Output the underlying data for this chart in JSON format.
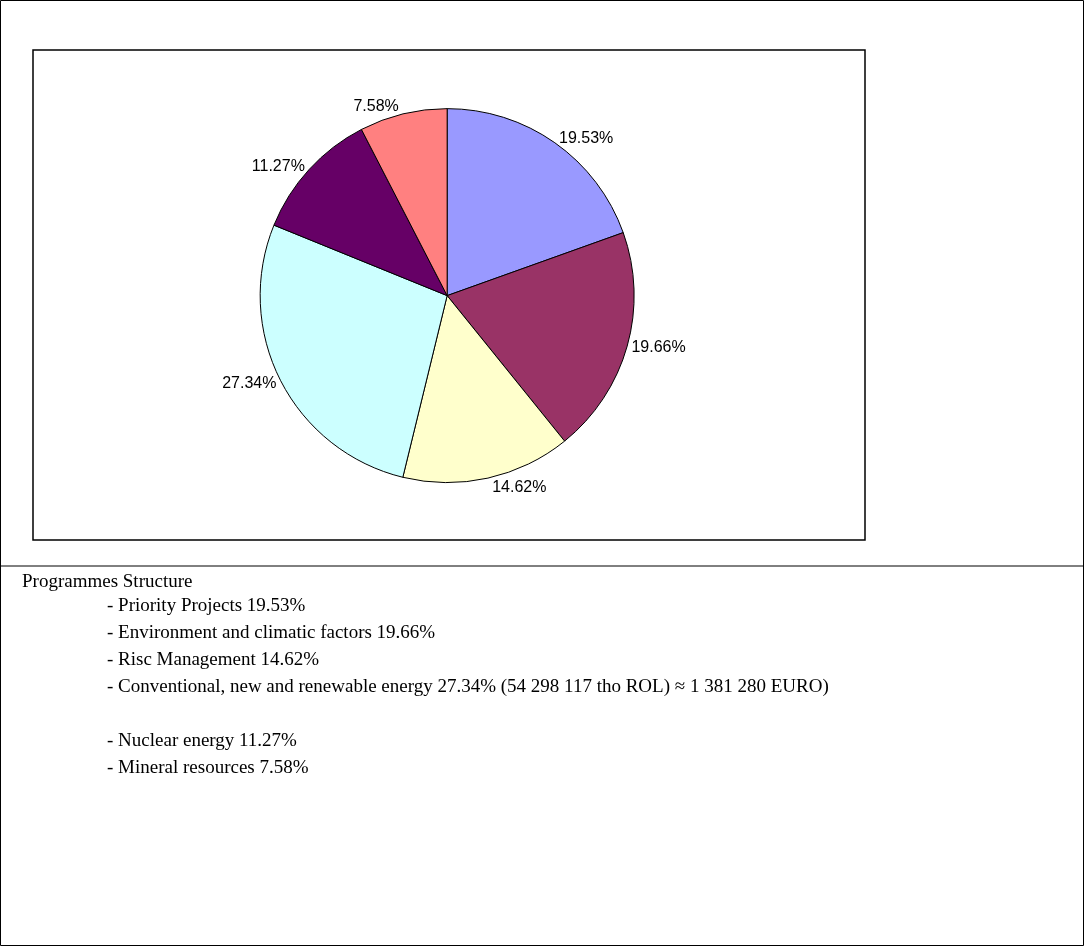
{
  "chart_data": {
    "type": "pie",
    "title": "Programmes Structure",
    "categories": [
      null,
      null,
      null,
      null,
      null,
      null
    ],
    "values": [
      19.53,
      19.66,
      14.62,
      27.34,
      11.27,
      7.58
    ],
    "colors": [
      "#9999ff",
      "#993366",
      "#ffffcc",
      "#ccffff",
      "#660066",
      "#ff8080"
    ],
    "value_labels": [
      "19.53%",
      "19.66%",
      "14.62%",
      "27.34%",
      "11.27%",
      "7.58%"
    ],
    "legend": false,
    "annotations": [
      "- Priority Projects 19.53%",
      "- Environment and climatic factors 19.66%",
      "- Risc Management 14.62%",
      "- Conventional, new and renewable energy 27.34% (54 298 117 tho ROL) ≈ 1 381 280 EURO)",
      "- Nuclear energy 11.27%",
      "- Mineral resources 7.58%"
    ]
  }
}
